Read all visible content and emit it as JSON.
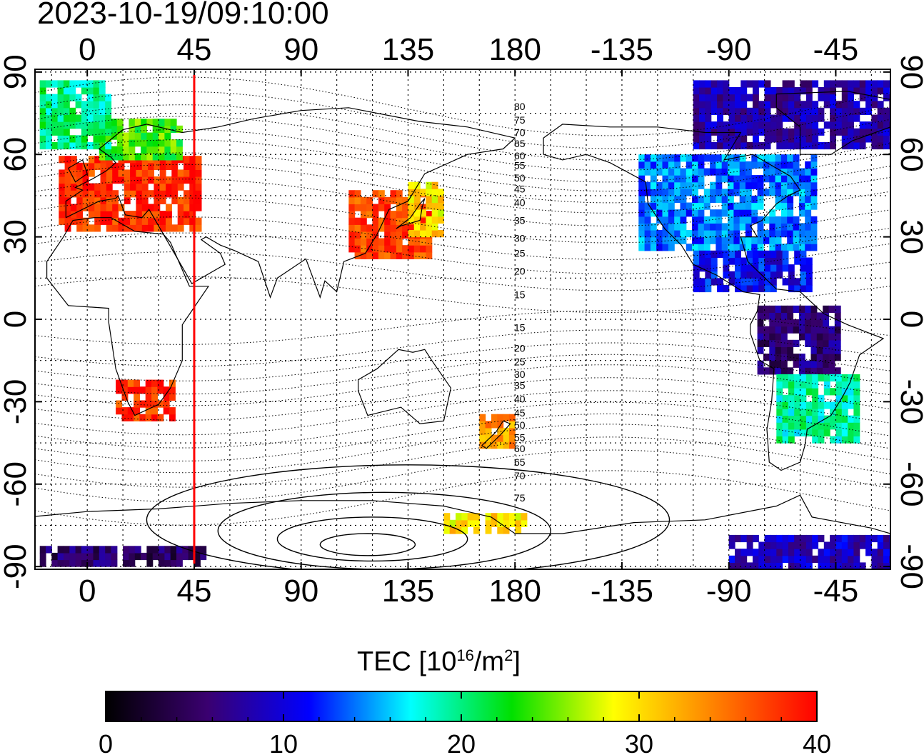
{
  "timestamp": "2023-10-19/09:10:00",
  "map": {
    "x_ticks": [
      {
        "lon": 0,
        "label": "0"
      },
      {
        "lon": 45,
        "label": "45"
      },
      {
        "lon": 90,
        "label": "90"
      },
      {
        "lon": 135,
        "label": "135"
      },
      {
        "lon": 180,
        "label": "180"
      },
      {
        "lon": 225,
        "label": "-135"
      },
      {
        "lon": 270,
        "label": "-90"
      },
      {
        "lon": 315,
        "label": "-45"
      }
    ],
    "y_ticks": [
      {
        "lat": 90,
        "label": "90"
      },
      {
        "lat": 60,
        "label": "60"
      },
      {
        "lat": 30,
        "label": "30"
      },
      {
        "lat": 0,
        "label": "0"
      },
      {
        "lat": -30,
        "label": "-30"
      },
      {
        "lat": -60,
        "label": "-60"
      },
      {
        "lat": -90,
        "label": "-90"
      }
    ],
    "lon_range": [
      -22,
      338
    ],
    "lat_range": [
      -91,
      91
    ],
    "grid_step_deg": 15,
    "sun_meridian_lon": 45,
    "sun_meridian_color": "#ff0000",
    "contour_labels": [
      {
        "label": "80",
        "lat": 77.5
      },
      {
        "label": "75",
        "lat": 72.5
      },
      {
        "label": "70",
        "lat": 68
      },
      {
        "label": "65",
        "lat": 64
      },
      {
        "label": "60",
        "lat": 59.5
      },
      {
        "label": "55",
        "lat": 56
      },
      {
        "label": "50",
        "lat": 51.5
      },
      {
        "label": "45",
        "lat": 47.5
      },
      {
        "label": "40",
        "lat": 42.5
      },
      {
        "label": "35",
        "lat": 36
      },
      {
        "label": "30",
        "lat": 29.5
      },
      {
        "label": "25",
        "lat": 24
      },
      {
        "label": "20",
        "lat": 17.5
      },
      {
        "label": "15",
        "lat": 9
      },
      {
        "label": "15",
        "lat": -3
      },
      {
        "label": "20",
        "lat": -10.5
      },
      {
        "label": "25",
        "lat": -15.5
      },
      {
        "label": "30",
        "lat": -20
      },
      {
        "label": "35",
        "lat": -24
      },
      {
        "label": "40",
        "lat": -29
      },
      {
        "label": "45",
        "lat": -34
      },
      {
        "label": "50",
        "lat": -38.5
      },
      {
        "label": "55",
        "lat": -43
      },
      {
        "label": "60",
        "lat": -47
      },
      {
        "label": "65",
        "lat": -52
      },
      {
        "label": "70",
        "lat": -57
      },
      {
        "label": "75",
        "lat": -65
      }
    ],
    "tec_regions": [
      {
        "name": "europe",
        "value": 38,
        "lon": [
          -12,
          48
        ],
        "lat": [
          32,
          58
        ]
      },
      {
        "name": "scandinavia",
        "value": 24,
        "lon": [
          5,
          40
        ],
        "lat": [
          58,
          72
        ]
      },
      {
        "name": "arctic-atlantic",
        "value": 20,
        "lon": [
          -20,
          10
        ],
        "lat": [
          62,
          86
        ]
      },
      {
        "name": "south-africa",
        "value": 38,
        "lon": [
          12,
          35
        ],
        "lat": [
          -37,
          -22
        ]
      },
      {
        "name": "east-asia",
        "value": 37,
        "lon": [
          110,
          145
        ],
        "lat": [
          22,
          45
        ]
      },
      {
        "name": "japan",
        "value": 30,
        "lon": [
          135,
          148
        ],
        "lat": [
          30,
          48
        ]
      },
      {
        "name": "new-zealand",
        "value": 33,
        "lon": [
          165,
          180
        ],
        "lat": [
          -47,
          -35
        ]
      },
      {
        "name": "antarctic-pacific",
        "value": 30,
        "lon": [
          150,
          185
        ],
        "lat": [
          -78,
          -71
        ]
      },
      {
        "name": "north-america",
        "value": 14,
        "lon": [
          232,
          305
        ],
        "lat": [
          25,
          60
        ]
      },
      {
        "name": "greenland",
        "value": 8,
        "lon": [
          255,
          338
        ],
        "lat": [
          62,
          85
        ]
      },
      {
        "name": "central-america",
        "value": 11,
        "lon": [
          255,
          305
        ],
        "lat": [
          10,
          25
        ]
      },
      {
        "name": "south-america-north",
        "value": 6,
        "lon": [
          282,
          315
        ],
        "lat": [
          -20,
          5
        ]
      },
      {
        "name": "south-america-south",
        "value": 19,
        "lon": [
          290,
          325
        ],
        "lat": [
          -45,
          -20
        ]
      },
      {
        "name": "antarctic-west",
        "value": 9,
        "lon": [
          270,
          338
        ],
        "lat": [
          -91,
          -80
        ]
      },
      {
        "name": "antarctic-east",
        "value": 5,
        "lon": [
          -20,
          50
        ],
        "lat": [
          -90,
          -84
        ]
      }
    ]
  },
  "colorbar": {
    "title_main": "TEC  [10",
    "title_exp": "16",
    "title_unit": "/m",
    "title_exp2": "2",
    "title_end": "]",
    "min": 0,
    "max": 40,
    "ticks": [
      {
        "value": 0,
        "label": "0"
      },
      {
        "value": 10,
        "label": "10"
      },
      {
        "value": 20,
        "label": "20"
      },
      {
        "value": 30,
        "label": "30"
      },
      {
        "value": 40,
        "label": "40"
      }
    ],
    "stops": [
      "#000000",
      "#3a0070",
      "#0000ff",
      "#00ffff",
      "#00e000",
      "#ffff00",
      "#ff8000",
      "#ff0000"
    ]
  }
}
